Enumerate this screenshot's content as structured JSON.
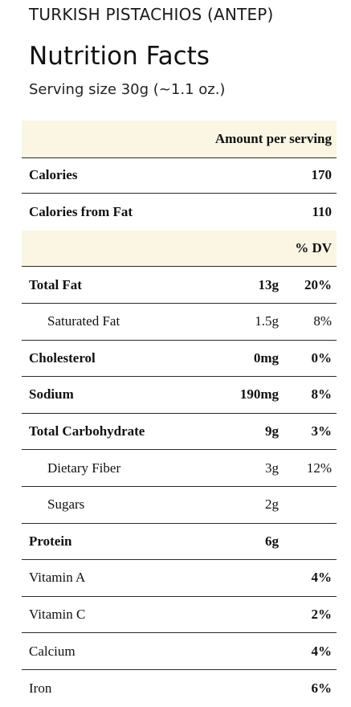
{
  "header": {
    "product": "TURKISH PISTACHIOS (ANTEP)",
    "title": "Nutrition Facts",
    "serving_size": "Serving size 30g (~1.1 oz.)"
  },
  "table": {
    "amount_header": "Amount per serving",
    "calories": {
      "label": "Calories",
      "value": "170"
    },
    "calories_fat": {
      "label": "Calories from Fat",
      "value": "110"
    },
    "dv_header": "% DV",
    "nutrients": [
      {
        "label": "Total Fat",
        "amount": "13g",
        "dv": "20%"
      },
      {
        "label": "Saturated Fat",
        "amount": "1.5g",
        "dv": "8%"
      },
      {
        "label": "Cholesterol",
        "amount": "0mg",
        "dv": "0%"
      },
      {
        "label": "Sodium",
        "amount": "190mg",
        "dv": "8%"
      },
      {
        "label": "Total Carbohydrate",
        "amount": "9g",
        "dv": "3%"
      },
      {
        "label": "Dietary Fiber",
        "amount": "3g",
        "dv": "12%"
      },
      {
        "label": "Sugars",
        "amount": "2g",
        "dv": ""
      },
      {
        "label": "Protein",
        "amount": "6g",
        "dv": ""
      }
    ],
    "vitamins": [
      {
        "label": "Vitamin A",
        "dv": "4%"
      },
      {
        "label": "Vitamin C",
        "dv": "2%"
      },
      {
        "label": "Calcium",
        "dv": "4%"
      },
      {
        "label": "Iron",
        "dv": "6%"
      }
    ]
  },
  "colors": {
    "shaded_row": "#fbf6e4",
    "rule": "#2a2a2a"
  }
}
